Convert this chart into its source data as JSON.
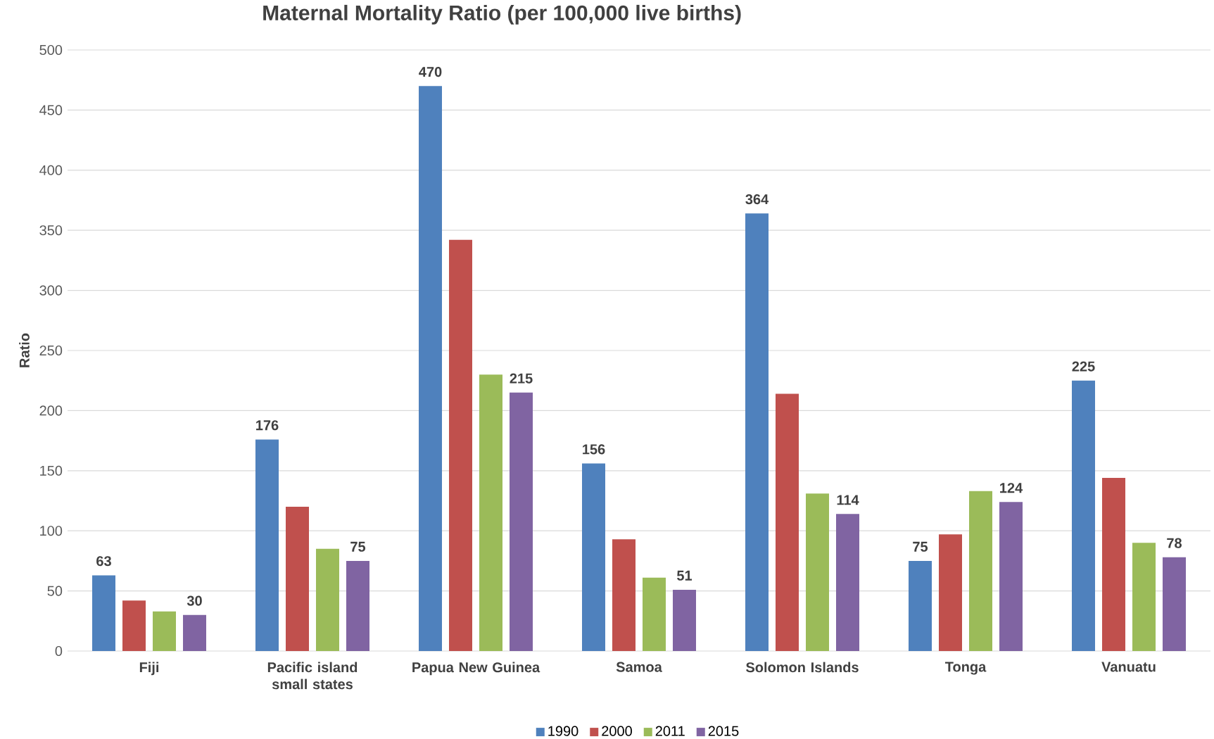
{
  "chart_data": {
    "type": "bar",
    "title": "Maternal Mortality Ratio (per 100,000 live births)",
    "ylabel": "Ratio",
    "categories": [
      "Fiji",
      "Pacific island small states",
      "Papua New Guinea",
      "Samoa",
      "Solomon Islands",
      "Tonga",
      "Vanuatu"
    ],
    "series": [
      {
        "name": "1990",
        "color": "#4f81bd",
        "values": [
          63,
          176,
          470,
          156,
          364,
          75,
          225
        ],
        "value_labels": [
          "63",
          "176",
          "470",
          "156",
          "364",
          "75",
          "225"
        ]
      },
      {
        "name": "2000",
        "color": "#c0504d",
        "values": [
          42,
          120,
          342,
          93,
          214,
          97,
          144
        ]
      },
      {
        "name": "2011",
        "color": "#9bbb59",
        "values": [
          33,
          85,
          230,
          61,
          131,
          133,
          90
        ]
      },
      {
        "name": "2015",
        "color": "#8064a2",
        "values": [
          30,
          75,
          215,
          51,
          114,
          124,
          78
        ],
        "value_labels": [
          "30",
          "75",
          "215",
          "51",
          "114",
          "124",
          "78"
        ]
      }
    ],
    "ylim": [
      0,
      500
    ],
    "yticks": [
      0,
      50,
      100,
      150,
      200,
      250,
      300,
      350,
      400,
      450,
      500
    ],
    "grid": "y",
    "legend": "bottom"
  }
}
